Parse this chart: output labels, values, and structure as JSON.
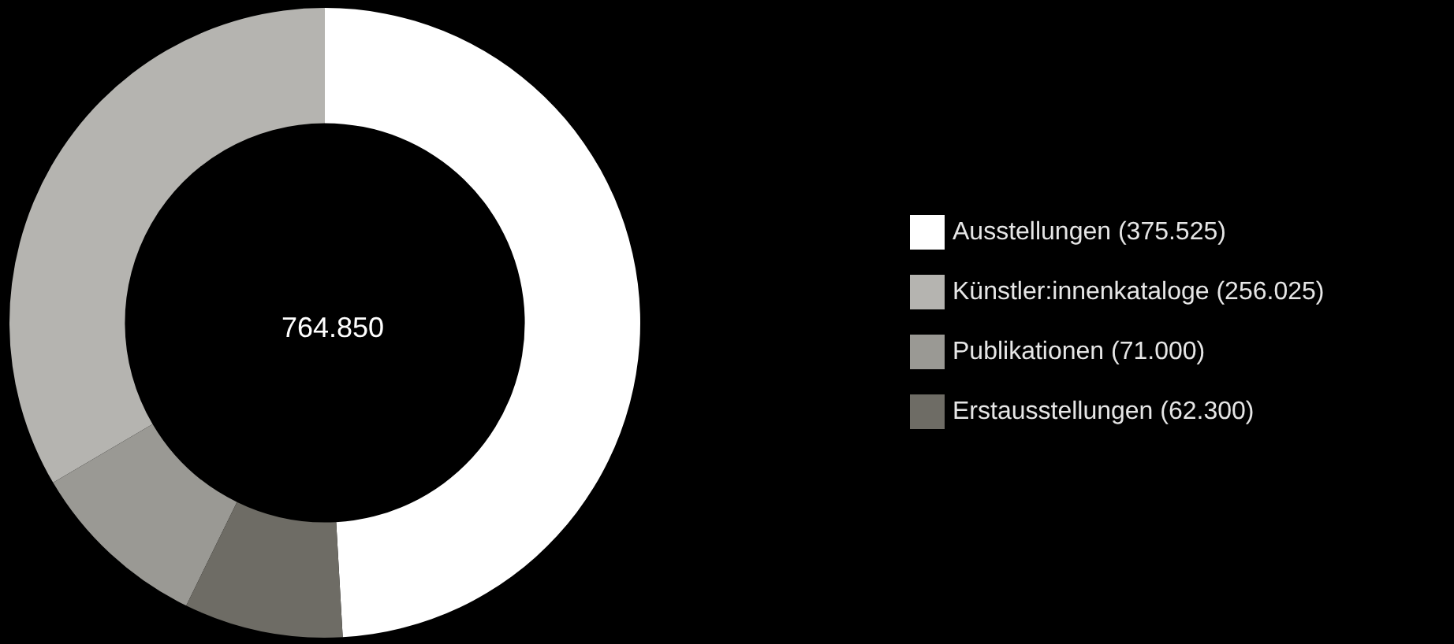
{
  "chart_data": {
    "type": "donut",
    "categories": [
      "Ausstellungen (375.525)",
      "Künstler:innenkataloge (256.025)",
      "Publikationen (71.000)",
      "Erstausstellungen (62.300)"
    ],
    "values": [
      375525,
      256025,
      71000,
      62300
    ],
    "colors": [
      "#ffffff",
      "#b5b4b0",
      "#9a9994",
      "#6e6c65"
    ],
    "legend": "right",
    "annotations": [
      "764.850"
    ]
  }
}
